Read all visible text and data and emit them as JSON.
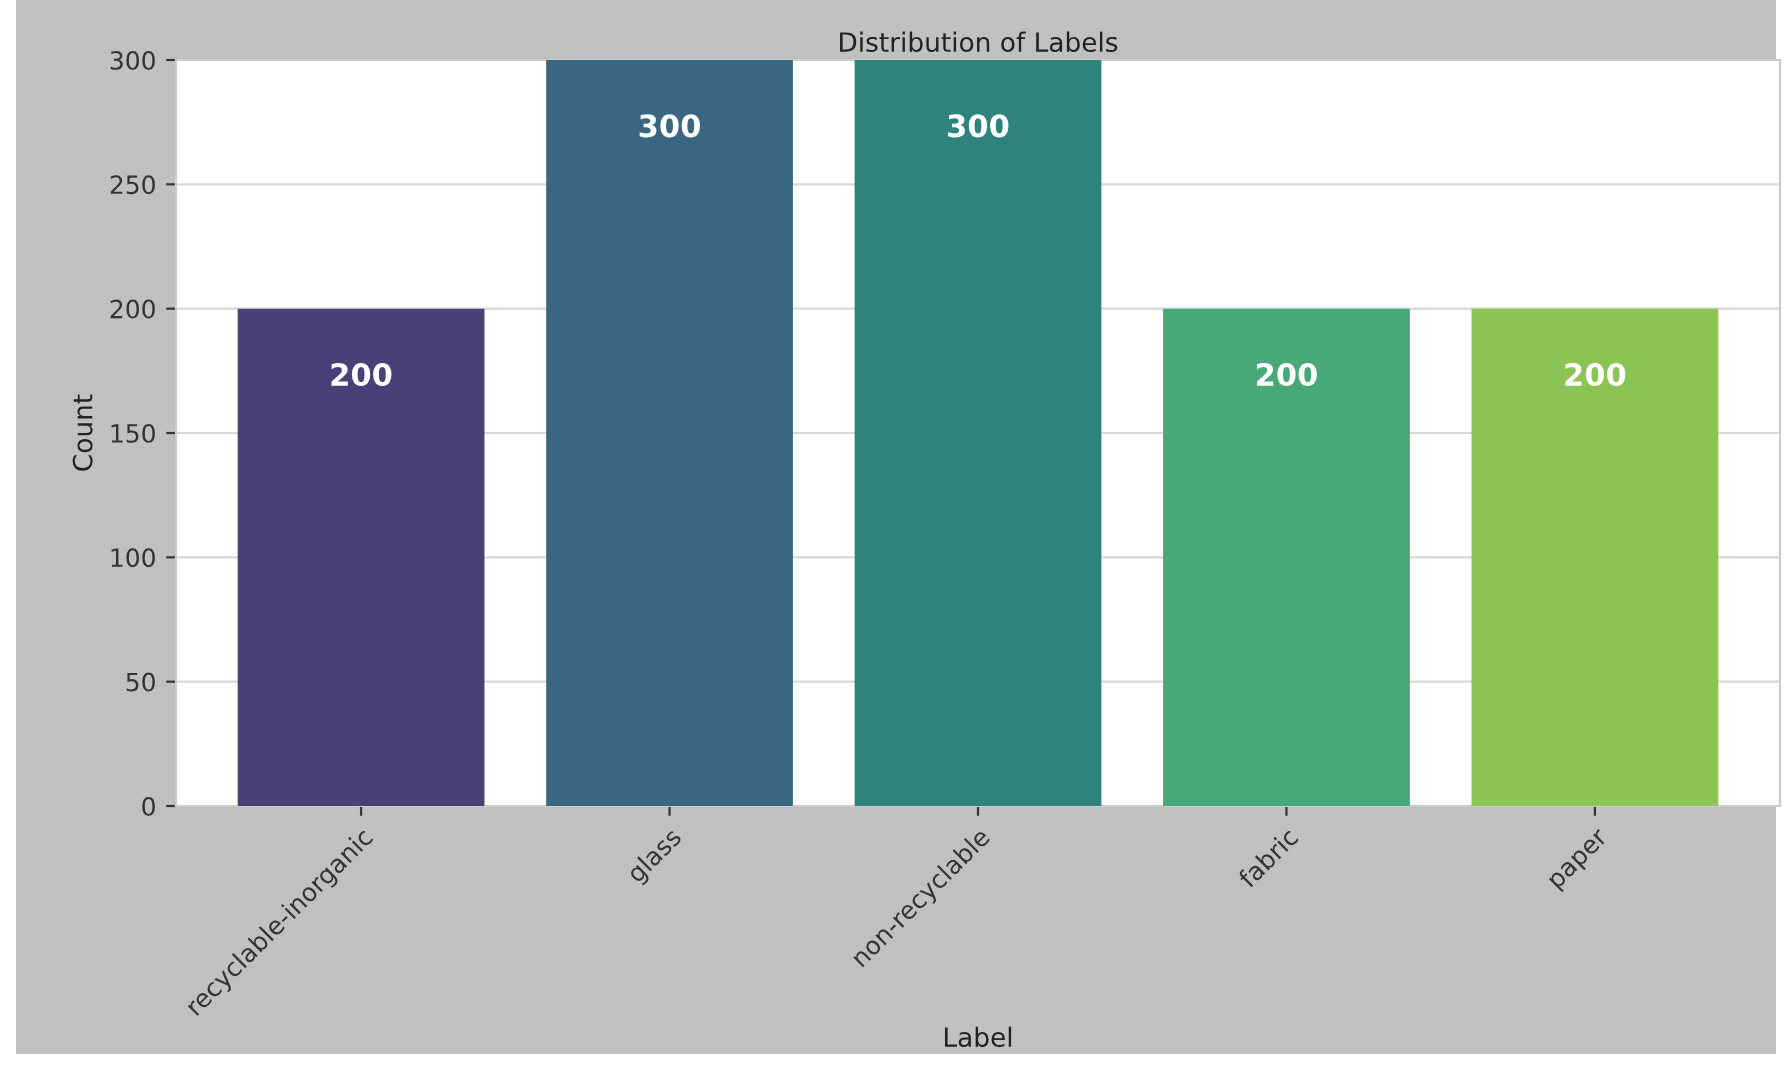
{
  "chart_data": {
    "type": "bar",
    "title": "Distribution of Labels",
    "xlabel": "Label",
    "ylabel": "Count",
    "categories": [
      "recyclable-inorganic",
      "glass",
      "non-recyclable",
      "fabric",
      "paper"
    ],
    "values": [
      200,
      300,
      300,
      200,
      200
    ],
    "colors": [
      "#4b3f77",
      "#3b6682",
      "#2e847c",
      "#48a878",
      "#8bc355"
    ],
    "ylim": [
      0,
      300
    ],
    "yticks": [
      0,
      50,
      100,
      150,
      200,
      250,
      300
    ],
    "grid": "y",
    "data_labels": true
  }
}
